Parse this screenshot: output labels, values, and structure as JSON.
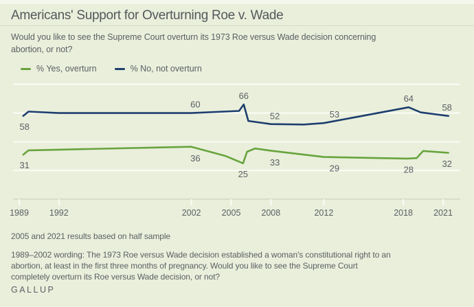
{
  "header": {
    "title": "Americans' Support for Overturning Roe v. Wade",
    "subtitle": "Would you like to see the Supreme Court overturn its 1973 Roe versus Wade decision concerning\nabortion, or not?"
  },
  "legend": {
    "items": [
      {
        "label": "% Yes, overturn",
        "color": "#68a33d"
      },
      {
        "label": "% No, not overturn",
        "color": "#1d3e6e"
      }
    ]
  },
  "chart_data": {
    "type": "line",
    "title": "Americans' Support for Overturning Roe v. Wade",
    "xlabel": "",
    "ylabel": "",
    "ylim": [
      0,
      85
    ],
    "x_ticks": [
      1989,
      1992,
      2002,
      2005,
      2008,
      2012,
      2018,
      2021
    ],
    "y_gridlines": [
      0,
      20,
      40,
      60,
      80
    ],
    "grid": true,
    "legend_position": "top",
    "series": [
      {
        "name": "% No, not overturn",
        "color": "#1d3e6e",
        "label_side": "above",
        "points": [
          [
            1989.3,
            58
          ],
          [
            1989.7,
            61
          ],
          [
            1992,
            60
          ],
          [
            2002,
            60
          ],
          [
            2005.6,
            61.5
          ],
          [
            2005.95,
            66
          ],
          [
            2006.3,
            54.5
          ],
          [
            2008,
            52.3
          ],
          [
            2010.5,
            52
          ],
          [
            2012,
            53
          ],
          [
            2018.4,
            64
          ],
          [
            2019.3,
            60.5
          ],
          [
            2021.4,
            58
          ]
        ],
        "labels": [
          {
            "year": 1989.4,
            "value": 58,
            "text": "58",
            "side": "below"
          },
          {
            "year": 2002.3,
            "value": 60,
            "text": "60"
          },
          {
            "year": 2005.95,
            "value": 66,
            "text": "66"
          },
          {
            "year": 2008.3,
            "value": 52,
            "text": "52"
          },
          {
            "year": 2012.8,
            "value": 53,
            "text": "53"
          },
          {
            "year": 2018.4,
            "value": 64,
            "text": "64"
          },
          {
            "year": 2021.3,
            "value": 58,
            "text": "58"
          }
        ]
      },
      {
        "name": "% Yes, overturn",
        "color": "#68a33d",
        "label_side": "below",
        "points": [
          [
            1989.3,
            31
          ],
          [
            1989.7,
            34
          ],
          [
            1992,
            34.5
          ],
          [
            2002,
            36.5
          ],
          [
            2004.6,
            30
          ],
          [
            2005.9,
            25
          ],
          [
            2006.2,
            33
          ],
          [
            2006.8,
            35.3
          ],
          [
            2008,
            33.8
          ],
          [
            2012,
            29.4
          ],
          [
            2018.3,
            28.3
          ],
          [
            2019.0,
            28.6
          ],
          [
            2019.5,
            33.6
          ],
          [
            2021.4,
            32.3
          ]
        ],
        "labels": [
          {
            "year": 1989.4,
            "value": 31,
            "text": "31"
          },
          {
            "year": 2002.3,
            "value": 36,
            "text": "36"
          },
          {
            "year": 2005.9,
            "value": 25,
            "text": "25"
          },
          {
            "year": 2008.3,
            "value": 33,
            "text": "33"
          },
          {
            "year": 2012.8,
            "value": 29,
            "text": "29"
          },
          {
            "year": 2018.4,
            "value": 28,
            "text": "28"
          },
          {
            "year": 2021.3,
            "value": 32,
            "text": "32"
          }
        ]
      }
    ]
  },
  "footer": {
    "note1": "2005 and 2021 results based on half sample",
    "note2": "1989–2002 wording: The 1973 Roe versus Wade decision established a woman's constitutional right to an\nabortion, at least in the first three months of pregnancy. Would you like to see the Supreme Court\ncompletely overturn its Roe versus Wade decision, or not?",
    "brand": "GALLUP"
  },
  "colors": {
    "background": "#e9efdb",
    "top_strip": "#f5f7ec",
    "divider": "#d8dbc9",
    "text": "#5c5f63",
    "gridline": "#fbfcf6",
    "axis": "#d9dcca"
  }
}
